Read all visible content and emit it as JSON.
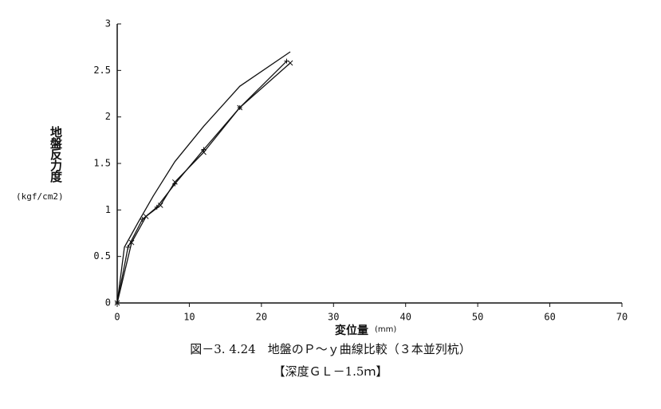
{
  "chart_data": {
    "type": "line",
    "y_label": "地盤反力度",
    "y_unit": "(kgf/cm2)",
    "x_label": "変位量",
    "x_unit": "(mm)",
    "caption": "図－3. 4.24　地盤のＰ～ｙ曲線比較（３本並列杭）",
    "caption2": "【深度ＧＬ－1.5ｍ】",
    "xlim": [
      0,
      70
    ],
    "xticks": [
      0,
      10,
      20,
      30,
      40,
      50,
      60,
      70
    ],
    "ylim": [
      0,
      3
    ],
    "yticks": [
      0,
      0.5,
      1,
      1.5,
      2,
      2.5,
      3
    ],
    "series": [
      {
        "color": "#111111",
        "marker": "none",
        "x": [
          0,
          1,
          3,
          5,
          8,
          12,
          17,
          24
        ],
        "values": [
          0,
          0.6,
          0.88,
          1.15,
          1.52,
          1.9,
          2.33,
          2.7
        ]
      },
      {
        "color": "#111111",
        "marker": "plus",
        "x": [
          0,
          1.5,
          3.5,
          5.5,
          8,
          12,
          17,
          23.5
        ],
        "values": [
          0,
          0.6,
          0.9,
          1.03,
          1.28,
          1.65,
          2.1,
          2.6
        ]
      },
      {
        "color": "#111111",
        "marker": "cross",
        "x": [
          0,
          2,
          4,
          6,
          8,
          12,
          17,
          24
        ],
        "values": [
          0,
          0.65,
          0.93,
          1.05,
          1.3,
          1.62,
          2.1,
          2.58
        ]
      }
    ]
  }
}
